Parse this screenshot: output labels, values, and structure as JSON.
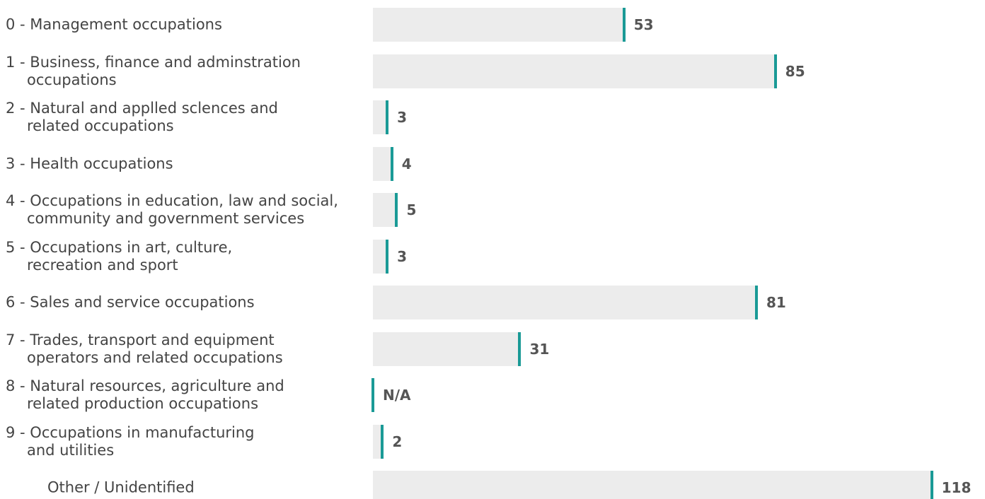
{
  "chart_data": {
    "type": "bar",
    "orientation": "horizontal",
    "categories": [
      "0 - Management occupations",
      "1 - Business, finance and adminstration\noccupations",
      "2 - Natural and applled sclences and\nrelated occupations",
      "3 - Health occupations",
      "4 - Occupations in education, law and social,\ncommunity and government services",
      "5 - Occupations in art, culture,\nrecreation and sport",
      "6 - Sales and service occupations",
      "7 - Trades, transport and equipment\noperators and related occupations",
      "8 - Natural resources, agriculture and\nrelated production occupations",
      "9 - Occupations in manufacturing\nand utilities",
      "Other / Unidentified"
    ],
    "values": [
      53,
      85,
      3,
      4,
      5,
      3,
      81,
      31,
      null,
      2,
      118
    ],
    "value_labels": [
      "53",
      "85",
      "3",
      "4",
      "5",
      "3",
      "81",
      "31",
      "N/A",
      "2",
      "118"
    ],
    "color": "#ececec",
    "marker_color": "#1a9a96",
    "xlim": [
      0,
      120
    ]
  }
}
